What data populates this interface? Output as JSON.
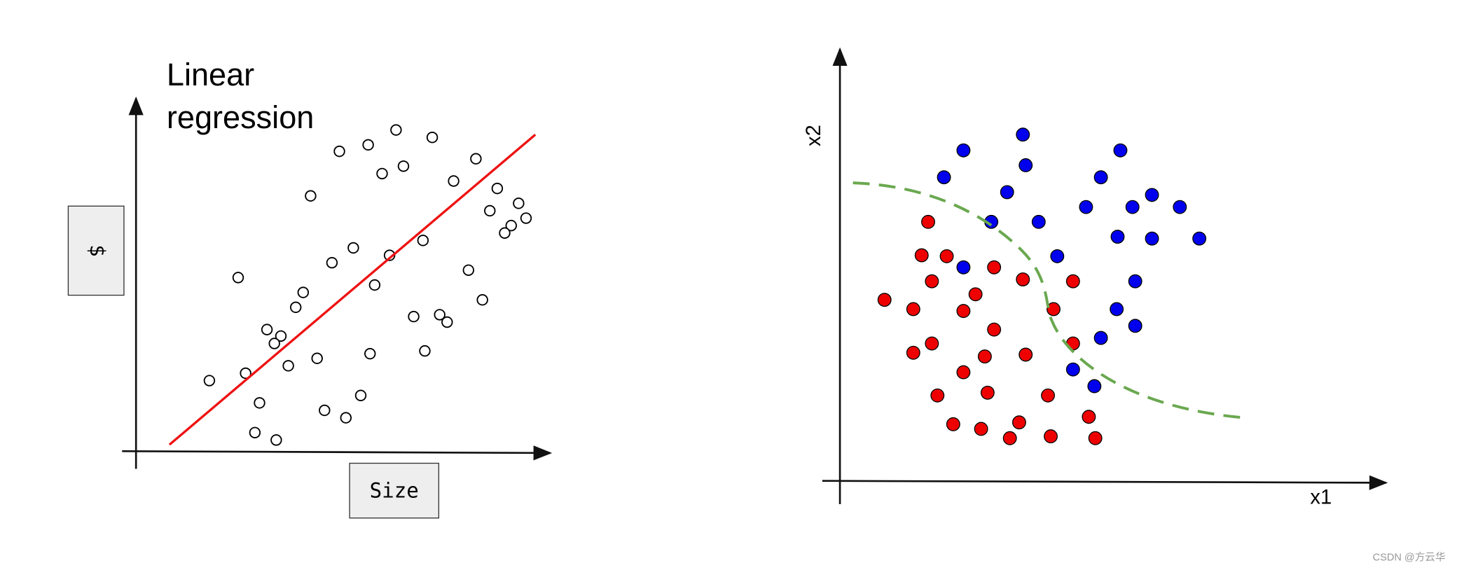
{
  "left": {
    "title_lines": [
      "Linear",
      "regression"
    ],
    "y_label": "$",
    "x_label": "Size"
  },
  "right": {
    "y_label": "x2",
    "x_label": "x1"
  },
  "watermark": "CSDN @方云华"
}
